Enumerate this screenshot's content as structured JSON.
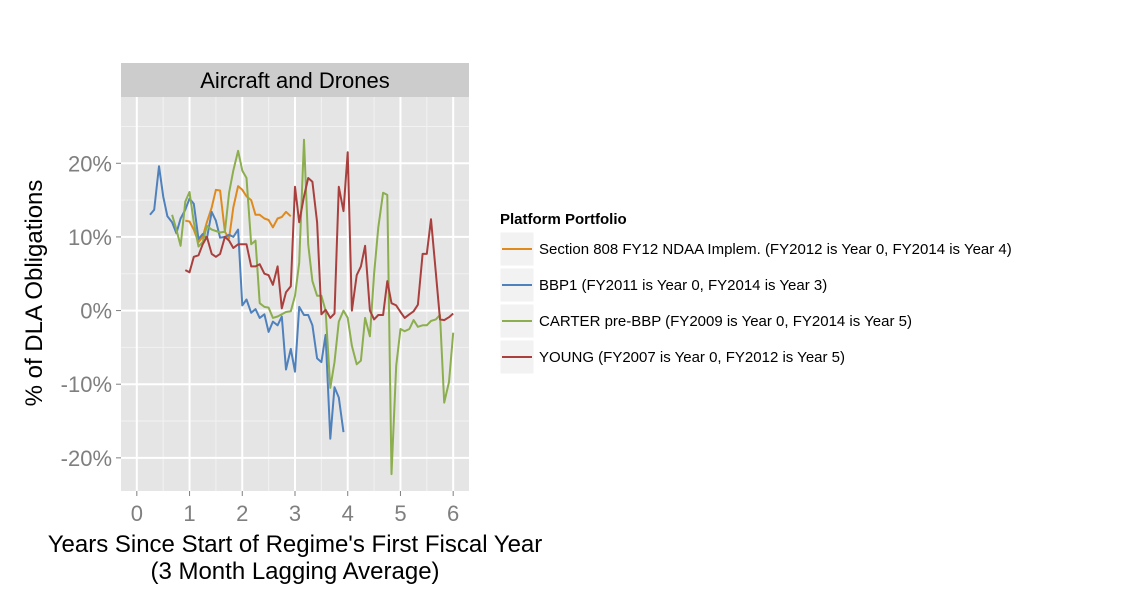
{
  "chart_data": {
    "type": "line",
    "facet_title": "Aircraft and Drones",
    "xlabel_line1": "Years Since Start of Regime's First Fiscal Year",
    "xlabel_line2": "(3 Month Lagging Average)",
    "ylabel": "% of DLA Obligations",
    "xlim": [
      -0.3,
      6.3
    ],
    "ylim": [
      -0.245,
      0.29
    ],
    "x_ticks": [
      0,
      1,
      2,
      3,
      4,
      5,
      6
    ],
    "x_tick_labels": [
      "0",
      "1",
      "2",
      "3",
      "4",
      "5",
      "6"
    ],
    "y_ticks": [
      -0.2,
      -0.1,
      0.0,
      0.1,
      0.2
    ],
    "y_tick_labels": [
      "-20%",
      "-10%",
      "0%",
      "10%",
      "20%"
    ],
    "grid": true,
    "legend": {
      "title": "Platform Portfolio",
      "position": "right"
    },
    "series": [
      {
        "name": "Section 808 FY12 NDAA Implem. (FY2012 is Year 0, FY2014 is Year 4)",
        "color": "#E08A1E",
        "points": [
          [
            0.92,
            0.122
          ],
          [
            1.0,
            0.121
          ],
          [
            1.08,
            0.11
          ],
          [
            1.17,
            0.093
          ],
          [
            1.25,
            0.1
          ],
          [
            1.33,
            0.12
          ],
          [
            1.42,
            0.14
          ],
          [
            1.5,
            0.164
          ],
          [
            1.58,
            0.163
          ],
          [
            1.67,
            0.107
          ],
          [
            1.75,
            0.098
          ],
          [
            1.83,
            0.14
          ],
          [
            1.92,
            0.169
          ],
          [
            2.0,
            0.164
          ],
          [
            2.08,
            0.155
          ],
          [
            2.17,
            0.15
          ],
          [
            2.25,
            0.13
          ],
          [
            2.33,
            0.13
          ],
          [
            2.42,
            0.125
          ],
          [
            2.5,
            0.123
          ],
          [
            2.58,
            0.113
          ],
          [
            2.67,
            0.125
          ],
          [
            2.75,
            0.127
          ],
          [
            2.83,
            0.134
          ],
          [
            2.92,
            0.128
          ]
        ]
      },
      {
        "name": "BBP1 (FY2011 is Year 0, FY2014 is Year 3)",
        "color": "#4F81BD",
        "points": [
          [
            0.25,
            0.13
          ],
          [
            0.33,
            0.137
          ],
          [
            0.42,
            0.196
          ],
          [
            0.5,
            0.155
          ],
          [
            0.58,
            0.128
          ],
          [
            0.67,
            0.12
          ],
          [
            0.75,
            0.105
          ],
          [
            0.83,
            0.125
          ],
          [
            0.92,
            0.137
          ],
          [
            1.0,
            0.152
          ],
          [
            1.08,
            0.145
          ],
          [
            1.17,
            0.097
          ],
          [
            1.25,
            0.104
          ],
          [
            1.33,
            0.098
          ],
          [
            1.42,
            0.134
          ],
          [
            1.5,
            0.122
          ],
          [
            1.58,
            0.099
          ],
          [
            1.67,
            0.1
          ],
          [
            1.75,
            0.103
          ],
          [
            1.83,
            0.1
          ],
          [
            1.92,
            0.11
          ],
          [
            2.0,
            0.007
          ],
          [
            2.08,
            0.015
          ],
          [
            2.17,
            -0.003
          ],
          [
            2.25,
            0.002
          ],
          [
            2.33,
            -0.01
          ],
          [
            2.42,
            -0.005
          ],
          [
            2.5,
            -0.029
          ],
          [
            2.58,
            -0.015
          ],
          [
            2.67,
            -0.02
          ],
          [
            2.75,
            -0.008
          ],
          [
            2.83,
            -0.08
          ],
          [
            2.92,
            -0.052
          ],
          [
            3.0,
            -0.083
          ],
          [
            3.08,
            0.005
          ],
          [
            3.17,
            -0.006
          ],
          [
            3.25,
            -0.006
          ],
          [
            3.33,
            -0.02
          ],
          [
            3.42,
            -0.065
          ],
          [
            3.5,
            -0.07
          ],
          [
            3.58,
            -0.033
          ],
          [
            3.67,
            -0.174
          ],
          [
            3.75,
            -0.104
          ],
          [
            3.83,
            -0.118
          ],
          [
            3.92,
            -0.165
          ]
        ]
      },
      {
        "name": "CARTER pre-BBP (FY2009 is Year 0, FY2014 is Year 5)",
        "color": "#8CAE4E",
        "points": [
          [
            0.67,
            0.13
          ],
          [
            0.75,
            0.11
          ],
          [
            0.83,
            0.088
          ],
          [
            0.92,
            0.148
          ],
          [
            1.0,
            0.161
          ],
          [
            1.08,
            0.12
          ],
          [
            1.17,
            0.087
          ],
          [
            1.25,
            0.093
          ],
          [
            1.33,
            0.115
          ],
          [
            1.42,
            0.11
          ],
          [
            1.5,
            0.108
          ],
          [
            1.58,
            0.106
          ],
          [
            1.67,
            0.107
          ],
          [
            1.75,
            0.16
          ],
          [
            1.83,
            0.19
          ],
          [
            1.92,
            0.217
          ],
          [
            2.0,
            0.19
          ],
          [
            2.08,
            0.18
          ],
          [
            2.17,
            0.09
          ],
          [
            2.25,
            0.095
          ],
          [
            2.33,
            0.01
          ],
          [
            2.42,
            0.005
          ],
          [
            2.5,
            0.004
          ],
          [
            2.58,
            -0.01
          ],
          [
            2.67,
            -0.008
          ],
          [
            2.75,
            -0.005
          ],
          [
            2.83,
            -0.002
          ],
          [
            2.92,
            -0.001
          ],
          [
            3.0,
            0.02
          ],
          [
            3.08,
            0.065
          ],
          [
            3.17,
            0.232
          ],
          [
            3.25,
            0.09
          ],
          [
            3.33,
            0.04
          ],
          [
            3.42,
            0.02
          ],
          [
            3.5,
            0.02
          ],
          [
            3.58,
            0.0
          ],
          [
            3.67,
            -0.105
          ],
          [
            3.75,
            -0.07
          ],
          [
            3.83,
            -0.015
          ],
          [
            3.92,
            0.0
          ],
          [
            4.0,
            -0.01
          ],
          [
            4.08,
            -0.048
          ],
          [
            4.17,
            -0.073
          ],
          [
            4.25,
            -0.068
          ],
          [
            4.33,
            -0.01
          ],
          [
            4.42,
            -0.035
          ],
          [
            4.5,
            0.05
          ],
          [
            4.58,
            0.113
          ],
          [
            4.67,
            0.16
          ],
          [
            4.75,
            0.157
          ],
          [
            4.83,
            -0.222
          ],
          [
            4.92,
            -0.075
          ],
          [
            5.0,
            -0.025
          ],
          [
            5.08,
            -0.028
          ],
          [
            5.17,
            -0.025
          ],
          [
            5.25,
            -0.013
          ],
          [
            5.33,
            -0.022
          ],
          [
            5.42,
            -0.02
          ],
          [
            5.5,
            -0.02
          ],
          [
            5.58,
            -0.014
          ],
          [
            5.67,
            -0.012
          ],
          [
            5.75,
            -0.006
          ],
          [
            5.83,
            -0.125
          ],
          [
            5.92,
            -0.097
          ],
          [
            6.0,
            -0.03
          ]
        ]
      },
      {
        "name": "YOUNG (FY2007 is Year 0, FY2012 is Year 5)",
        "color": "#A9403E",
        "points": [
          [
            0.92,
            0.055
          ],
          [
            1.0,
            0.052
          ],
          [
            1.08,
            0.073
          ],
          [
            1.17,
            0.075
          ],
          [
            1.25,
            0.09
          ],
          [
            1.33,
            0.1
          ],
          [
            1.42,
            0.077
          ],
          [
            1.5,
            0.073
          ],
          [
            1.58,
            0.077
          ],
          [
            1.67,
            0.1
          ],
          [
            1.75,
            0.095
          ],
          [
            1.83,
            0.085
          ],
          [
            1.92,
            0.09
          ],
          [
            2.0,
            0.09
          ],
          [
            2.08,
            0.09
          ],
          [
            2.17,
            0.06
          ],
          [
            2.25,
            0.06
          ],
          [
            2.33,
            0.063
          ],
          [
            2.42,
            0.05
          ],
          [
            2.5,
            0.048
          ],
          [
            2.58,
            0.035
          ],
          [
            2.67,
            0.06
          ],
          [
            2.75,
            0.003
          ],
          [
            2.83,
            0.025
          ],
          [
            2.92,
            0.033
          ],
          [
            3.0,
            0.168
          ],
          [
            3.08,
            0.12
          ],
          [
            3.17,
            0.155
          ],
          [
            3.25,
            0.18
          ],
          [
            3.33,
            0.175
          ],
          [
            3.42,
            0.12
          ],
          [
            3.5,
            -0.005
          ],
          [
            3.58,
            0.001
          ],
          [
            3.67,
            -0.01
          ],
          [
            3.75,
            -0.004
          ],
          [
            3.83,
            0.168
          ],
          [
            3.92,
            0.135
          ],
          [
            4.0,
            0.215
          ],
          [
            4.08,
            0.0
          ],
          [
            4.17,
            0.048
          ],
          [
            4.25,
            0.06
          ],
          [
            4.33,
            0.088
          ],
          [
            4.42,
            0.0
          ],
          [
            4.5,
            -0.012
          ],
          [
            4.58,
            -0.006
          ],
          [
            4.67,
            -0.006
          ],
          [
            4.75,
            0.04
          ],
          [
            4.83,
            0.01
          ],
          [
            4.92,
            0.007
          ],
          [
            5.0,
            -0.002
          ],
          [
            5.08,
            -0.01
          ],
          [
            5.17,
            -0.005
          ],
          [
            5.25,
            -0.001
          ],
          [
            5.33,
            0.008
          ],
          [
            5.42,
            0.077
          ],
          [
            5.5,
            0.077
          ],
          [
            5.58,
            0.124
          ],
          [
            5.67,
            0.052
          ],
          [
            5.75,
            -0.012
          ],
          [
            5.83,
            -0.013
          ],
          [
            5.92,
            -0.009
          ],
          [
            6.0,
            -0.004
          ]
        ]
      }
    ]
  }
}
